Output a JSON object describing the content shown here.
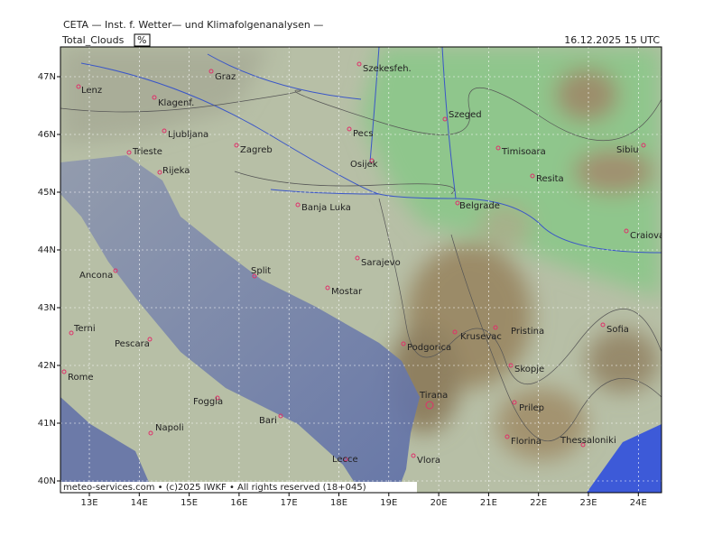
{
  "header": {
    "institute": "CETA — Inst. f. Wetter— und Klimafolgenanalysen —",
    "parameter": "Total_Clouds",
    "unit": "%",
    "valid_time": "16.12.2025 15 UTC"
  },
  "map": {
    "lat_ticks": [
      {
        "value": 47,
        "label": "47N"
      },
      {
        "value": 46,
        "label": "46N"
      },
      {
        "value": 45,
        "label": "45N"
      },
      {
        "value": 44,
        "label": "44N"
      },
      {
        "value": 43,
        "label": "43N"
      },
      {
        "value": 42,
        "label": "42N"
      },
      {
        "value": 41,
        "label": "41N"
      },
      {
        "value": 40,
        "label": "40N"
      }
    ],
    "lon_ticks": [
      {
        "value": 13,
        "label": "13E"
      },
      {
        "value": 14,
        "label": "14E"
      },
      {
        "value": 15,
        "label": "15E"
      },
      {
        "value": 16,
        "label": "16E"
      },
      {
        "value": 17,
        "label": "17E"
      },
      {
        "value": 18,
        "label": "18E"
      },
      {
        "value": 19,
        "label": "19E"
      },
      {
        "value": 20,
        "label": "20E"
      },
      {
        "value": 21,
        "label": "21E"
      },
      {
        "value": 22,
        "label": "22E"
      },
      {
        "value": 23,
        "label": "23E"
      },
      {
        "value": 24,
        "label": "24E"
      }
    ],
    "cities": [
      "Lenz",
      "Graz",
      "Szekesfeh.",
      "Klagenf.",
      "Szeged",
      "Ljubljana",
      "Pecs",
      "Zagreb",
      "Timisoara",
      "Sibiu",
      "Trieste",
      "Osijek",
      "Rijeka",
      "Resita",
      "Belgrade",
      "Banja Luka",
      "Craiova",
      "Sarajevo",
      "Ancona",
      "Split",
      "Mostar",
      "Sofia",
      "Pristina",
      "Terni",
      "Krusevac",
      "Pescara",
      "Podgorica",
      "Skopje",
      "Rome",
      "Foggia",
      "Tirana",
      "Prilep",
      "Bari",
      "Napoli",
      "Florina",
      "Thessaloniki",
      "Vlora",
      "Lecce"
    ],
    "credit": "meteo-services.com • (c)2025 IWKF • All rights reserved (18+045)"
  }
}
